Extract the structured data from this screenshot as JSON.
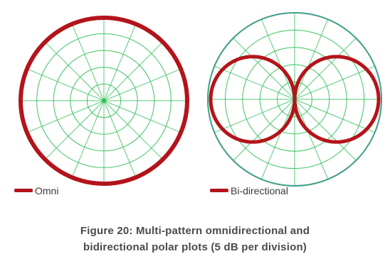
{
  "chart_data": [
    {
      "type": "polar",
      "pattern": "omnidirectional",
      "legend": "Omni",
      "rings": 5,
      "spokes": 16,
      "db_per_division": 5,
      "grid_color": "#2fbf57",
      "trace_color": "#b3141b",
      "values": {
        "angles_deg": [
          0,
          45,
          90,
          135,
          180,
          225,
          270,
          315
        ],
        "relative_gain_db": [
          0,
          0,
          0,
          0,
          0,
          0,
          0,
          0
        ]
      }
    },
    {
      "type": "polar",
      "pattern": "bidirectional",
      "legend": "Bi-directional",
      "rings": 5,
      "spokes": 16,
      "db_per_division": 5,
      "grid_color": "#2fbf57",
      "trace_color": "#b3141b",
      "outline_color": "#4f7fb2",
      "values": {
        "angles_deg": [
          0,
          30,
          60,
          90,
          120,
          150,
          180,
          210,
          240,
          270,
          300,
          330
        ],
        "relative_gain_db": [
          0,
          -1.2,
          -6,
          -40,
          -6,
          -1.2,
          0,
          -1.2,
          -6,
          -40,
          -6,
          -1.2
        ]
      }
    }
  ],
  "caption": {
    "line1": "Figure 20: Multi-pattern omnidirectional and",
    "line2": "bidirectional polar plots (5 dB per division)"
  }
}
